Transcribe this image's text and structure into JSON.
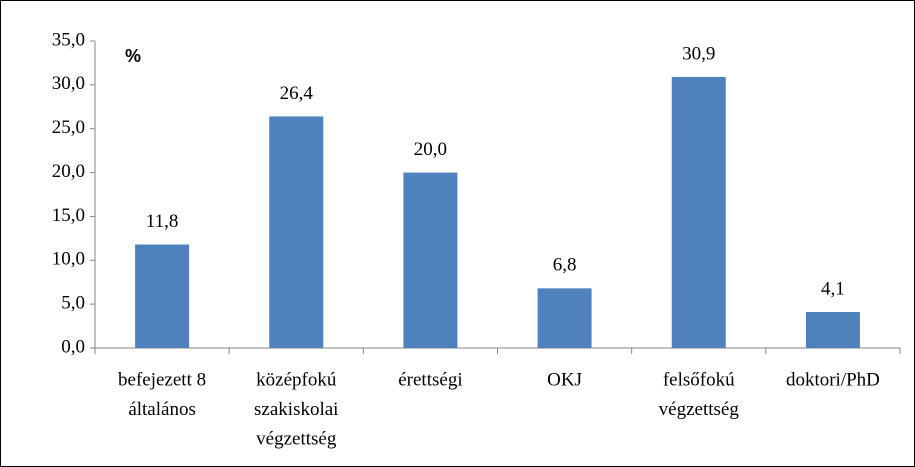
{
  "chart_data": {
    "type": "bar",
    "unit_label": "%",
    "categories": [
      [
        "befejezett 8",
        "általános"
      ],
      [
        "középfokú",
        "szakiskolai",
        "végzettség"
      ],
      [
        "érettségi"
      ],
      [
        "OKJ"
      ],
      [
        "felsőfokú",
        "végzettség"
      ],
      [
        "doktori/PhD"
      ]
    ],
    "values": [
      11.8,
      26.4,
      20.0,
      6.8,
      30.9,
      4.1
    ],
    "value_labels": [
      "11,8",
      "26,4",
      "20,0",
      "6,8",
      "30,9",
      "4,1"
    ],
    "color": "#4f81bd",
    "ylim": [
      0,
      35
    ],
    "yticks": [
      {
        "value": 0,
        "label": "0,0"
      },
      {
        "value": 5,
        "label": "5,0"
      },
      {
        "value": 10,
        "label": "10,0"
      },
      {
        "value": 15,
        "label": "15,0"
      },
      {
        "value": 20,
        "label": "20,0"
      },
      {
        "value": 25,
        "label": "25,0"
      },
      {
        "value": 30,
        "label": "30,0"
      },
      {
        "value": 35,
        "label": "35,0"
      }
    ],
    "grid": false
  }
}
